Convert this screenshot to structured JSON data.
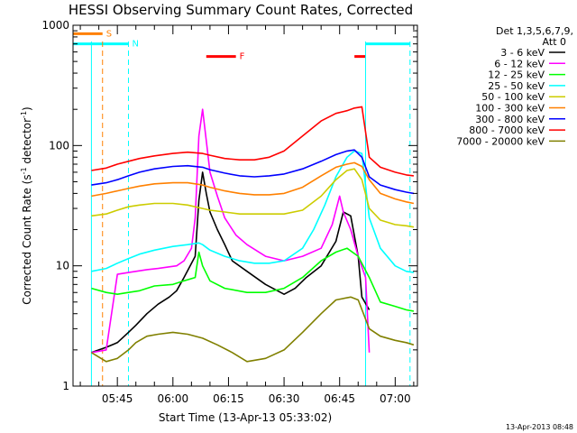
{
  "chart_data": {
    "type": "line",
    "title": "HESSI Observing Summary Count Rates, Corrected",
    "xlabel": "Start Time (13-Apr-13 05:33:02)",
    "ylabel_main": "Corrected Count Rate (s",
    "ylabel_sup1": "-1",
    "ylabel_mid": " detector",
    "ylabel_sup2": "-1",
    "ylabel_end": ")",
    "yscale": "log",
    "ylim": [
      1,
      1000
    ],
    "xlim": [
      "05:33:02",
      "07:06:00"
    ],
    "y_ticks": [
      {
        "value": 1,
        "label": "1"
      },
      {
        "value": 10,
        "label": "10"
      },
      {
        "value": 100,
        "label": "100"
      },
      {
        "value": 1000,
        "label": "1000"
      }
    ],
    "x_ticks": [
      {
        "time": "05:45",
        "label": "05:45"
      },
      {
        "time": "06:00",
        "label": "06:00"
      },
      {
        "time": "06:15",
        "label": "06:15"
      },
      {
        "time": "06:30",
        "label": "06:30"
      },
      {
        "time": "06:45",
        "label": "06:45"
      },
      {
        "time": "07:00",
        "label": "07:00"
      }
    ],
    "legend_header": [
      "Det 1,3,5,6,7,9,",
      "Att 0"
    ],
    "legend_placement": "right",
    "series": [
      {
        "name": "3 - 6 keV",
        "color": "#000000",
        "x": [
          "05:38",
          "05:42",
          "05:45",
          "05:48",
          "05:50",
          "05:53",
          "05:56",
          "05:59",
          "06:01",
          "06:03",
          "06:06",
          "06:07",
          "06:08",
          "06:09",
          "06:10",
          "06:12",
          "06:14",
          "06:16",
          "06:20",
          "06:25",
          "06:30",
          "06:33",
          "06:36",
          "06:40",
          "06:44",
          "06:46",
          "06:48",
          "06:50",
          "06:51",
          "06:53"
        ],
        "y": [
          1.9,
          2.1,
          2.3,
          2.8,
          3.2,
          4.0,
          4.8,
          5.5,
          6.2,
          8.0,
          12,
          35,
          60,
          40,
          28,
          20,
          15,
          11,
          9,
          7,
          5.8,
          6.5,
          8,
          10,
          16,
          28,
          26,
          12,
          5.5,
          4.3
        ]
      },
      {
        "name": "6 - 12 keV",
        "color": "#ff00ff",
        "x": [
          "05:38",
          "05:42",
          "05:45",
          "05:48",
          "05:50",
          "05:53",
          "05:56",
          "05:59",
          "06:01",
          "06:03",
          "06:05",
          "06:06",
          "06:07",
          "06:08",
          "06:09",
          "06:10",
          "06:12",
          "06:14",
          "06:17",
          "06:20",
          "06:25",
          "06:30",
          "06:35",
          "06:40",
          "06:43",
          "06:45",
          "06:46",
          "06:48",
          "06:50",
          "06:52",
          "06:53"
        ],
        "y": [
          1.9,
          2.0,
          8.5,
          8.8,
          9.0,
          9.3,
          9.5,
          9.8,
          10,
          11,
          14,
          25,
          120,
          200,
          110,
          60,
          38,
          25,
          18,
          15,
          12,
          11,
          12,
          14,
          22,
          38,
          28,
          20,
          12,
          8,
          1.9
        ]
      },
      {
        "name": "12 - 25 keV",
        "color": "#00ff00",
        "x": [
          "05:38",
          "05:42",
          "05:45",
          "05:48",
          "05:51",
          "05:55",
          "06:00",
          "06:03",
          "06:06",
          "06:07",
          "06:08",
          "06:10",
          "06:14",
          "06:20",
          "06:25",
          "06:30",
          "06:35",
          "06:40",
          "06:44",
          "06:47",
          "06:50",
          "06:53",
          "06:56",
          "07:00",
          "07:03",
          "07:05"
        ],
        "y": [
          6.5,
          6.0,
          5.8,
          6.0,
          6.2,
          6.8,
          7.0,
          7.5,
          8.0,
          13,
          10,
          7.5,
          6.5,
          6.0,
          6.0,
          6.5,
          8,
          11,
          13,
          14,
          12,
          8,
          5.0,
          4.6,
          4.3,
          4.2
        ]
      },
      {
        "name": "25 - 50 keV",
        "color": "#00ffff",
        "x": [
          "05:38",
          "05:42",
          "05:45",
          "05:48",
          "05:51",
          "05:55",
          "06:00",
          "06:04",
          "06:07",
          "06:08",
          "06:10",
          "06:14",
          "06:18",
          "06:22",
          "06:26",
          "06:30",
          "06:35",
          "06:38",
          "06:41",
          "06:44",
          "06:47",
          "06:49",
          "06:51",
          "06:53",
          "06:56",
          "07:00",
          "07:03",
          "07:05"
        ],
        "y": [
          9.0,
          9.5,
          10.5,
          11.5,
          12.5,
          13.5,
          14.5,
          15,
          15.5,
          15,
          13.5,
          12,
          11,
          10.5,
          10.5,
          11,
          14,
          20,
          32,
          55,
          80,
          90,
          86,
          25,
          14,
          10,
          9.0,
          8.8
        ]
      },
      {
        "name": "50 - 100 keV",
        "color": "#cccc00",
        "x": [
          "05:38",
          "05:42",
          "05:45",
          "05:48",
          "05:51",
          "05:55",
          "06:00",
          "06:04",
          "06:08",
          "06:10",
          "06:14",
          "06:18",
          "06:22",
          "06:26",
          "06:30",
          "06:35",
          "06:40",
          "06:44",
          "06:47",
          "06:49",
          "06:51",
          "06:53",
          "06:56",
          "07:00",
          "07:03",
          "07:05"
        ],
        "y": [
          26,
          27,
          29,
          31,
          32,
          33,
          33,
          32,
          30,
          29,
          28,
          27,
          27,
          27,
          27,
          29,
          38,
          52,
          62,
          64,
          52,
          30,
          24,
          22,
          21.5,
          21
        ]
      },
      {
        "name": "100 - 300 keV",
        "color": "#ff8000",
        "x": [
          "05:38",
          "05:42",
          "05:45",
          "05:48",
          "05:51",
          "05:55",
          "06:00",
          "06:04",
          "06:08",
          "06:10",
          "06:14",
          "06:18",
          "06:22",
          "06:26",
          "06:30",
          "06:35",
          "06:40",
          "06:44",
          "06:47",
          "06:49",
          "06:51",
          "06:53",
          "06:56",
          "07:00",
          "07:03",
          "07:05"
        ],
        "y": [
          38,
          40,
          42,
          44,
          46,
          48,
          49,
          49,
          47,
          45,
          42,
          40,
          39,
          39,
          40,
          45,
          56,
          66,
          70,
          72,
          67,
          52,
          40,
          36,
          34,
          33
        ]
      },
      {
        "name": "300 - 800 keV",
        "color": "#0000ff",
        "x": [
          "05:38",
          "05:42",
          "05:45",
          "05:48",
          "05:51",
          "05:55",
          "06:00",
          "06:04",
          "06:08",
          "06:10",
          "06:14",
          "06:18",
          "06:22",
          "06:26",
          "06:30",
          "06:35",
          "06:40",
          "06:44",
          "06:47",
          "06:49",
          "06:51",
          "06:53",
          "06:56",
          "07:00",
          "07:03",
          "07:05"
        ],
        "y": [
          47,
          49,
          52,
          56,
          60,
          64,
          67,
          68,
          66,
          63,
          59,
          56,
          55,
          56,
          58,
          64,
          74,
          84,
          90,
          92,
          80,
          55,
          47,
          43,
          41,
          40
        ]
      },
      {
        "name": "800 - 7000 keV",
        "color": "#ff0000",
        "x": [
          "05:38",
          "05:42",
          "05:45",
          "05:48",
          "05:51",
          "05:55",
          "06:00",
          "06:04",
          "06:08",
          "06:10",
          "06:14",
          "06:18",
          "06:22",
          "06:26",
          "06:30",
          "06:35",
          "06:40",
          "06:44",
          "06:47",
          "06:49",
          "06:51",
          "06:53",
          "06:56",
          "07:00",
          "07:03",
          "07:05"
        ],
        "y": [
          62,
          65,
          70,
          74,
          78,
          82,
          86,
          88,
          86,
          83,
          78,
          76,
          76,
          80,
          90,
          120,
          160,
          185,
          195,
          205,
          210,
          80,
          66,
          60,
          57,
          56
        ]
      },
      {
        "name": "7000 - 20000 keV",
        "color": "#808000",
        "x": [
          "05:38",
          "05:42",
          "05:45",
          "05:48",
          "05:50",
          "05:53",
          "05:56",
          "06:00",
          "06:04",
          "06:08",
          "06:12",
          "06:16",
          "06:20",
          "06:25",
          "06:30",
          "06:35",
          "06:40",
          "06:44",
          "06:48",
          "06:50",
          "06:53",
          "06:56",
          "07:00",
          "07:03",
          "07:05"
        ],
        "y": [
          1.9,
          1.6,
          1.7,
          2.0,
          2.3,
          2.6,
          2.7,
          2.8,
          2.7,
          2.5,
          2.2,
          1.9,
          1.6,
          1.7,
          2.0,
          2.8,
          4.0,
          5.2,
          5.5,
          5.2,
          3.0,
          2.6,
          2.4,
          2.3,
          2.2
        ]
      }
    ],
    "vertical_lines": [
      {
        "time": "05:38",
        "color": "#00ffff",
        "style": "solid"
      },
      {
        "time": "05:48",
        "color": "#00ffff",
        "style": "dashed"
      },
      {
        "time": "06:52",
        "color": "#00ffff",
        "style": "solid"
      },
      {
        "time": "07:04",
        "color": "#00ffff",
        "style": "dashed"
      },
      {
        "time": "05:41",
        "color": "#ff8000",
        "style": "dashed"
      }
    ],
    "flags": [
      {
        "label": "S",
        "color": "#ff8000",
        "segments": [
          [
            "05:33",
            "05:41"
          ]
        ],
        "level": 850
      },
      {
        "label": "N",
        "color": "#00ffff",
        "segments": [
          [
            "05:33",
            "05:48"
          ],
          [
            "06:52",
            "07:04"
          ]
        ],
        "level": 700
      },
      {
        "label": "F",
        "color": "#ff0000",
        "segments": [
          [
            "06:09",
            "06:17"
          ],
          [
            "06:49",
            "06:52"
          ]
        ],
        "level": 550
      }
    ]
  },
  "timestamp": "13-Apr-2013 08:48"
}
